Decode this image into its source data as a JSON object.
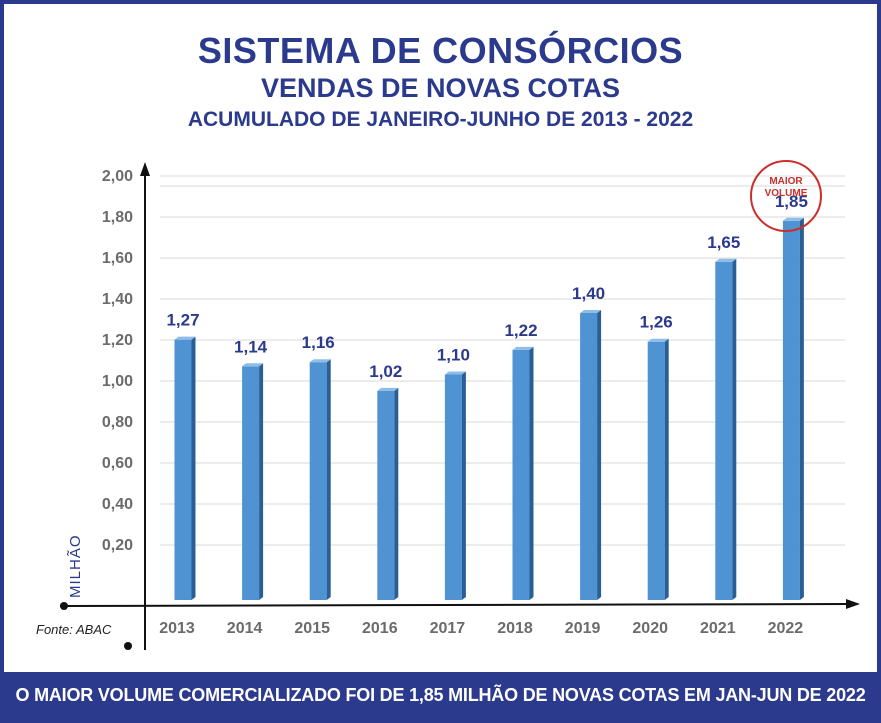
{
  "header": {
    "title": "SISTEMA DE CONSÓRCIOS",
    "subtitle": "VENDAS DE NOVAS COTAS",
    "period": "ACUMULADO DE JANEIRO-JUNHO DE 2013 - 2022"
  },
  "badge": {
    "line1": "MAIOR",
    "line2": "VOLUME"
  },
  "source": "Fonte: ABAC",
  "footer": "O MAIOR VOLUME COMERCIALIZADO FOI DE 1,85 MILHÃO DE NOVAS COTAS EM JAN-JUN DE 2022",
  "colors": {
    "brand": "#2b3a8c",
    "bar": "#4f93d3",
    "bar_dark": "#2a5f95",
    "highlight": "#c9302c"
  },
  "chart_data": {
    "type": "bar",
    "title": "SISTEMA DE CONSÓRCIOS",
    "categories": [
      "2013",
      "2014",
      "2015",
      "2016",
      "2017",
      "2018",
      "2019",
      "2020",
      "2021",
      "2022"
    ],
    "values": [
      1.27,
      1.14,
      1.16,
      1.02,
      1.1,
      1.22,
      1.4,
      1.26,
      1.65,
      1.85
    ],
    "data_labels": [
      "1,27",
      "1,14",
      "1,16",
      "1,02",
      "1,10",
      "1,22",
      "1,40",
      "1,26",
      "1,65",
      "1,85"
    ],
    "ylabel": "MILHÃO",
    "xlabel": "",
    "ylim": [
      0,
      2.0
    ],
    "yticks": [
      0.2,
      0.4,
      0.6,
      0.8,
      1.0,
      1.2,
      1.4,
      1.6,
      1.8,
      2.0
    ],
    "ytick_labels": [
      "0,20",
      "0,40",
      "0,60",
      "0,80",
      "1,00",
      "1,20",
      "1,40",
      "1,60",
      "1,80",
      "2,00"
    ],
    "grid": true,
    "legend": "none"
  }
}
